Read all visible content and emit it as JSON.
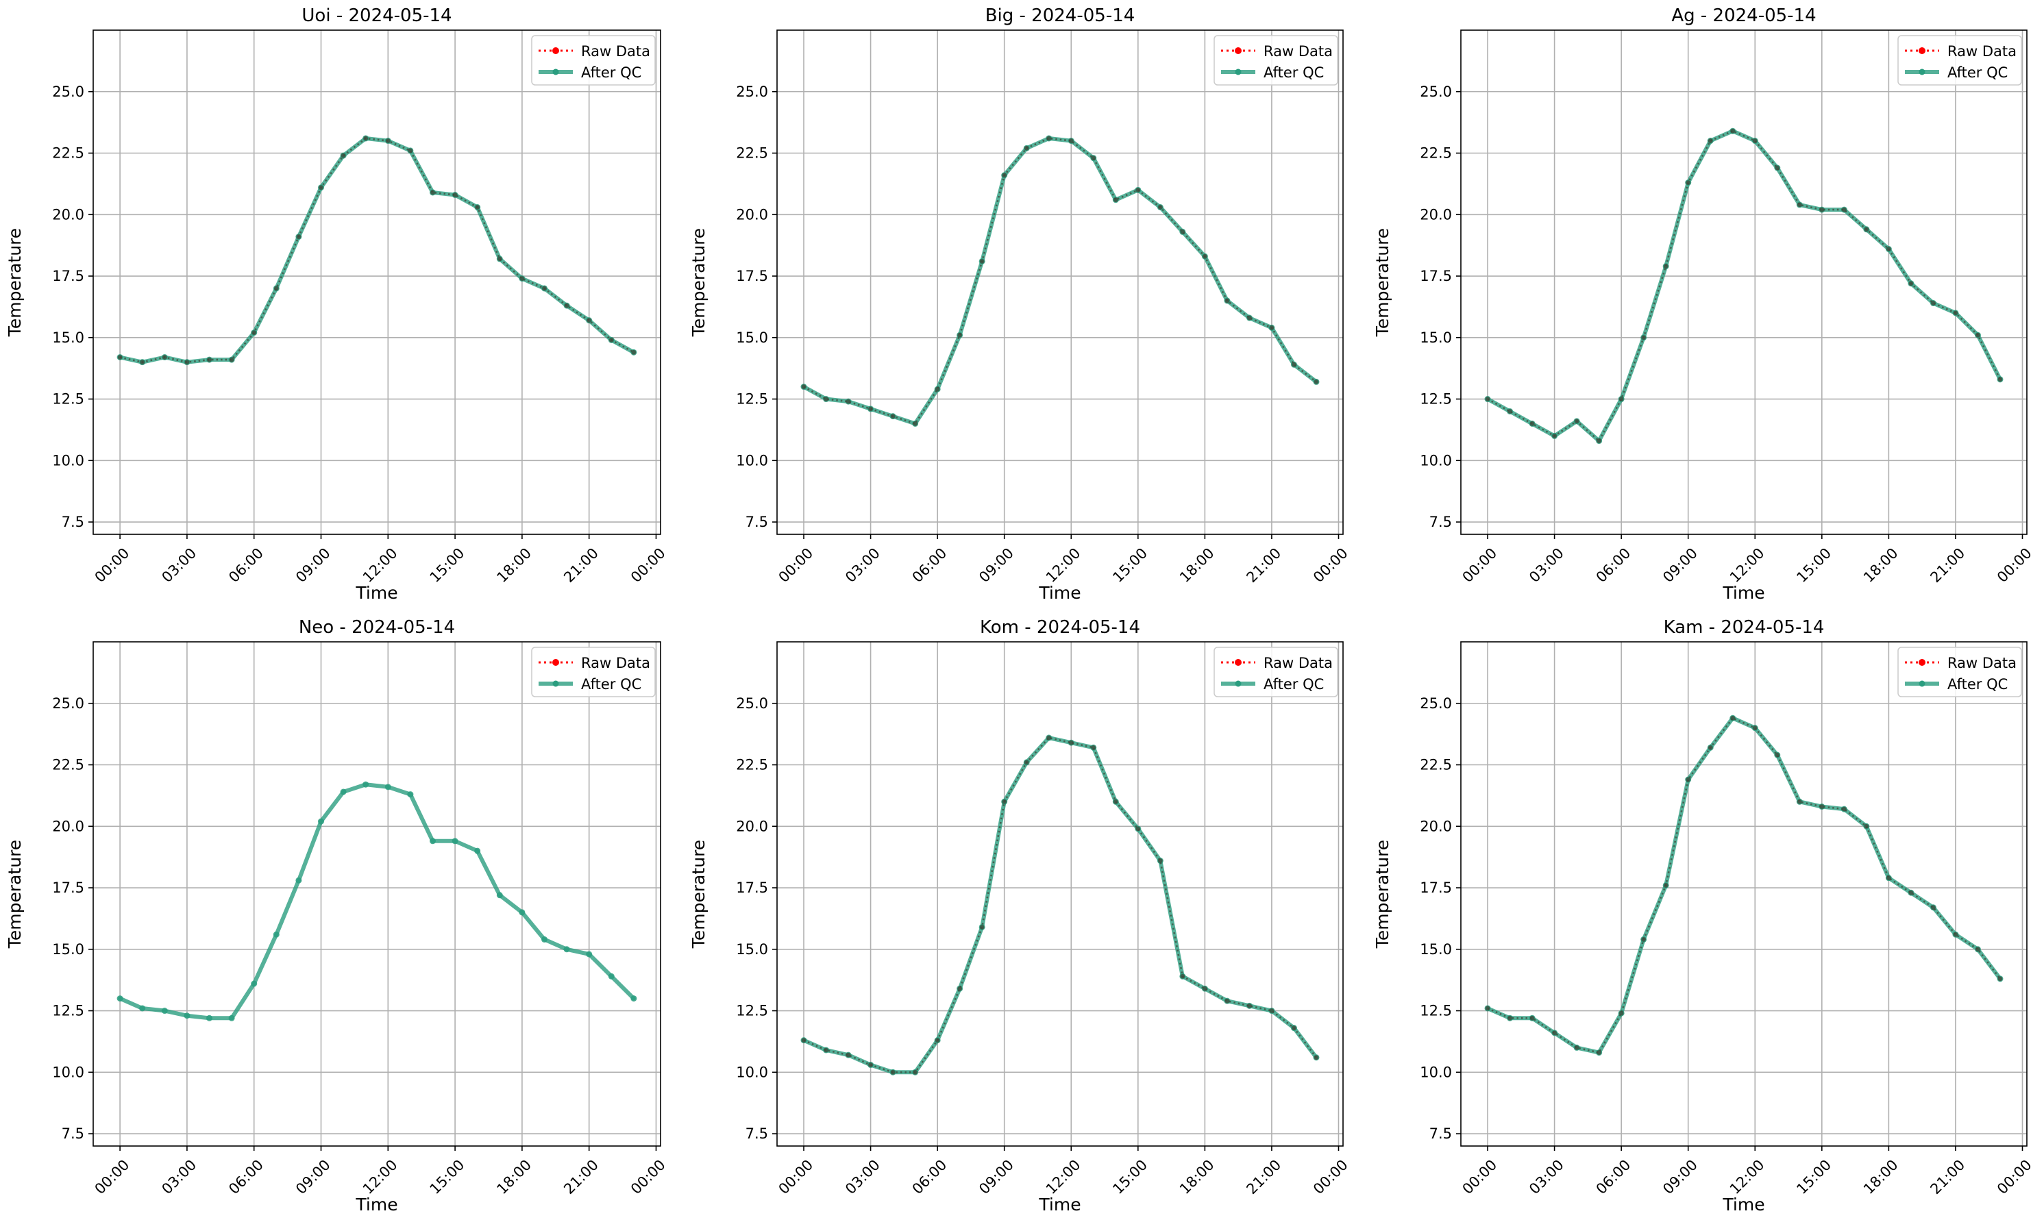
{
  "figure": {
    "legend": {
      "raw_label": "Raw Data",
      "qc_label": "After QC"
    },
    "colors": {
      "raw": "#ff0000",
      "qc": "#2a9d7f",
      "grid": "#b0b0b0",
      "axes": "#000000"
    }
  },
  "chart_data": [
    {
      "type": "line",
      "title": "Uoi - 2024-05-14",
      "xlabel": "Time",
      "ylabel": "Temperature",
      "x_hours": [
        0,
        1,
        2,
        3,
        4,
        5,
        6,
        7,
        8,
        9,
        10,
        11,
        12,
        13,
        14,
        15,
        16,
        17,
        18,
        19,
        20,
        21,
        22,
        23
      ],
      "x_tick_labels": [
        "00:00",
        "03:00",
        "06:00",
        "09:00",
        "12:00",
        "15:00",
        "18:00",
        "21:00",
        "00:00"
      ],
      "x_tick_hours": [
        0,
        3,
        6,
        9,
        12,
        15,
        18,
        21,
        24
      ],
      "y_ticks": [
        7.5,
        10.0,
        12.5,
        15.0,
        17.5,
        20.0,
        22.5,
        25.0
      ],
      "ylim": [
        7.0,
        27.5
      ],
      "xlim": [
        -1.2,
        24.2
      ],
      "grid": true,
      "legend_position": "top-right",
      "series": [
        {
          "name": "Raw Data",
          "style": "dotted-markers",
          "values": [
            14.2,
            14.0,
            14.2,
            14.0,
            14.1,
            14.1,
            15.2,
            17.0,
            19.1,
            21.1,
            22.4,
            23.1,
            23.0,
            22.6,
            20.9,
            20.8,
            20.3,
            18.2,
            17.4,
            17.0,
            16.3,
            15.7,
            14.9,
            14.4
          ]
        },
        {
          "name": "After QC",
          "style": "thick-line-markers",
          "values": [
            14.2,
            14.0,
            14.2,
            14.0,
            14.1,
            14.1,
            15.2,
            17.0,
            19.1,
            21.1,
            22.4,
            23.1,
            23.0,
            22.6,
            20.9,
            20.8,
            20.3,
            18.2,
            17.4,
            17.0,
            16.3,
            15.7,
            14.9,
            14.4
          ]
        }
      ]
    },
    {
      "type": "line",
      "title": "Big - 2024-05-14",
      "xlabel": "Time",
      "ylabel": "Temperature",
      "x_hours": [
        0,
        1,
        2,
        3,
        4,
        5,
        6,
        7,
        8,
        9,
        10,
        11,
        12,
        13,
        14,
        15,
        16,
        17,
        18,
        19,
        20,
        21,
        22,
        23
      ],
      "x_tick_labels": [
        "00:00",
        "03:00",
        "06:00",
        "09:00",
        "12:00",
        "15:00",
        "18:00",
        "21:00",
        "00:00"
      ],
      "x_tick_hours": [
        0,
        3,
        6,
        9,
        12,
        15,
        18,
        21,
        24
      ],
      "y_ticks": [
        7.5,
        10.0,
        12.5,
        15.0,
        17.5,
        20.0,
        22.5,
        25.0
      ],
      "ylim": [
        7.0,
        27.5
      ],
      "xlim": [
        -1.2,
        24.2
      ],
      "grid": true,
      "legend_position": "top-right",
      "series": [
        {
          "name": "Raw Data",
          "style": "dotted-markers",
          "values": [
            13.0,
            12.5,
            12.4,
            12.1,
            11.8,
            11.5,
            12.9,
            15.1,
            18.1,
            21.6,
            22.7,
            23.1,
            23.0,
            22.3,
            20.6,
            21.0,
            20.3,
            19.3,
            18.3,
            16.5,
            15.8,
            15.4,
            13.9,
            13.2
          ]
        },
        {
          "name": "After QC",
          "style": "thick-line-markers",
          "values": [
            13.0,
            12.5,
            12.4,
            12.1,
            11.8,
            11.5,
            12.9,
            15.1,
            18.1,
            21.6,
            22.7,
            23.1,
            23.0,
            22.3,
            20.6,
            21.0,
            20.3,
            19.3,
            18.3,
            16.5,
            15.8,
            15.4,
            13.9,
            13.2
          ]
        }
      ]
    },
    {
      "type": "line",
      "title": "Ag - 2024-05-14",
      "xlabel": "Time",
      "ylabel": "Temperature",
      "x_hours": [
        0,
        1,
        2,
        3,
        4,
        5,
        6,
        7,
        8,
        9,
        10,
        11,
        12,
        13,
        14,
        15,
        16,
        17,
        18,
        19,
        20,
        21,
        22,
        23
      ],
      "x_tick_labels": [
        "00:00",
        "03:00",
        "06:00",
        "09:00",
        "12:00",
        "15:00",
        "18:00",
        "21:00",
        "00:00"
      ],
      "x_tick_hours": [
        0,
        3,
        6,
        9,
        12,
        15,
        18,
        21,
        24
      ],
      "y_ticks": [
        7.5,
        10.0,
        12.5,
        15.0,
        17.5,
        20.0,
        22.5,
        25.0
      ],
      "ylim": [
        7.0,
        27.5
      ],
      "xlim": [
        -1.2,
        24.2
      ],
      "grid": true,
      "legend_position": "top-right",
      "series": [
        {
          "name": "Raw Data",
          "style": "dotted-markers",
          "values": [
            12.5,
            12.0,
            11.5,
            11.0,
            11.6,
            10.8,
            12.5,
            15.0,
            17.9,
            21.3,
            23.0,
            23.4,
            23.0,
            21.9,
            20.4,
            20.2,
            20.2,
            19.4,
            18.6,
            17.2,
            16.4,
            16.0,
            15.1,
            13.3
          ]
        },
        {
          "name": "After QC",
          "style": "thick-line-markers",
          "values": [
            12.5,
            12.0,
            11.5,
            11.0,
            11.6,
            10.8,
            12.5,
            15.0,
            17.9,
            21.3,
            23.0,
            23.4,
            23.0,
            21.9,
            20.4,
            20.2,
            20.2,
            19.4,
            18.6,
            17.2,
            16.4,
            16.0,
            15.1,
            13.3
          ]
        }
      ]
    },
    {
      "type": "line",
      "title": "Neo - 2024-05-14",
      "xlabel": "Time",
      "ylabel": "Temperature",
      "x_hours": [
        0,
        1,
        2,
        3,
        4,
        5,
        6,
        7,
        8,
        9,
        10,
        11,
        12,
        13,
        14,
        15,
        16,
        17,
        18,
        19,
        20,
        21,
        22,
        23
      ],
      "x_tick_labels": [
        "00:00",
        "03:00",
        "06:00",
        "09:00",
        "12:00",
        "15:00",
        "18:00",
        "21:00",
        "00:00"
      ],
      "x_tick_hours": [
        0,
        3,
        6,
        9,
        12,
        15,
        18,
        21,
        24
      ],
      "y_ticks": [
        7.5,
        10.0,
        12.5,
        15.0,
        17.5,
        20.0,
        22.5,
        25.0
      ],
      "ylim": [
        7.0,
        27.5
      ],
      "xlim": [
        -1.2,
        24.2
      ],
      "grid": true,
      "legend_position": "top-right",
      "series": [
        {
          "name": "Raw Data",
          "style": "dotted-markers",
          "values": []
        },
        {
          "name": "After QC",
          "style": "thick-line-markers",
          "values": [
            13.0,
            12.6,
            12.5,
            12.3,
            12.2,
            12.2,
            13.6,
            15.6,
            17.8,
            20.2,
            21.4,
            21.7,
            21.6,
            21.3,
            19.4,
            19.4,
            19.0,
            17.2,
            16.5,
            15.4,
            15.0,
            14.8,
            13.9,
            13.0
          ]
        }
      ]
    },
    {
      "type": "line",
      "title": "Kom - 2024-05-14",
      "xlabel": "Time",
      "ylabel": "Temperature",
      "x_hours": [
        0,
        1,
        2,
        3,
        4,
        5,
        6,
        7,
        8,
        9,
        10,
        11,
        12,
        13,
        14,
        15,
        16,
        17,
        18,
        19,
        20,
        21,
        22,
        23
      ],
      "x_tick_labels": [
        "00:00",
        "03:00",
        "06:00",
        "09:00",
        "12:00",
        "15:00",
        "18:00",
        "21:00",
        "00:00"
      ],
      "x_tick_hours": [
        0,
        3,
        6,
        9,
        12,
        15,
        18,
        21,
        24
      ],
      "y_ticks": [
        7.5,
        10.0,
        12.5,
        15.0,
        17.5,
        20.0,
        22.5,
        25.0
      ],
      "ylim": [
        7.0,
        27.5
      ],
      "xlim": [
        -1.2,
        24.2
      ],
      "grid": true,
      "legend_position": "top-right",
      "series": [
        {
          "name": "Raw Data",
          "style": "dotted-markers",
          "values": [
            11.3,
            10.9,
            10.7,
            10.3,
            10.0,
            10.0,
            11.3,
            13.4,
            15.9,
            21.0,
            22.6,
            23.6,
            23.4,
            23.2,
            21.0,
            19.9,
            18.6,
            13.9,
            13.4,
            12.9,
            12.7,
            12.5,
            11.8,
            10.6
          ]
        },
        {
          "name": "After QC",
          "style": "thick-line-markers",
          "values": [
            11.3,
            10.9,
            10.7,
            10.3,
            10.0,
            10.0,
            11.3,
            13.4,
            15.9,
            21.0,
            22.6,
            23.6,
            23.4,
            23.2,
            21.0,
            19.9,
            18.6,
            13.9,
            13.4,
            12.9,
            12.7,
            12.5,
            11.8,
            10.6
          ]
        }
      ]
    },
    {
      "type": "line",
      "title": "Kam - 2024-05-14",
      "xlabel": "Time",
      "ylabel": "Temperature",
      "x_hours": [
        0,
        1,
        2,
        3,
        4,
        5,
        6,
        7,
        8,
        9,
        10,
        11,
        12,
        13,
        14,
        15,
        16,
        17,
        18,
        19,
        20,
        21,
        22,
        23
      ],
      "x_tick_labels": [
        "00:00",
        "03:00",
        "06:00",
        "09:00",
        "12:00",
        "15:00",
        "18:00",
        "21:00",
        "00:00"
      ],
      "x_tick_hours": [
        0,
        3,
        6,
        9,
        12,
        15,
        18,
        21,
        24
      ],
      "y_ticks": [
        7.5,
        10.0,
        12.5,
        15.0,
        17.5,
        20.0,
        22.5,
        25.0
      ],
      "ylim": [
        7.0,
        27.5
      ],
      "xlim": [
        -1.2,
        24.2
      ],
      "grid": true,
      "legend_position": "top-right",
      "series": [
        {
          "name": "Raw Data",
          "style": "dotted-markers",
          "values": [
            12.6,
            12.2,
            12.2,
            11.6,
            11.0,
            10.8,
            12.4,
            15.4,
            17.6,
            21.9,
            23.2,
            24.4,
            24.0,
            22.9,
            21.0,
            20.8,
            20.7,
            20.0,
            17.9,
            17.3,
            16.7,
            15.6,
            15.0,
            13.8
          ]
        },
        {
          "name": "After QC",
          "style": "thick-line-markers",
          "values": [
            12.6,
            12.2,
            12.2,
            11.6,
            11.0,
            10.8,
            12.4,
            15.4,
            17.6,
            21.9,
            23.2,
            24.4,
            24.0,
            22.9,
            21.0,
            20.8,
            20.7,
            20.0,
            17.9,
            17.3,
            16.7,
            15.6,
            15.0,
            13.8
          ]
        }
      ]
    }
  ]
}
